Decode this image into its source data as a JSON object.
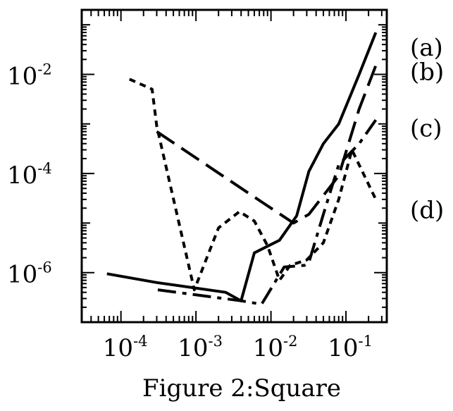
{
  "caption": "Figure 2:Square",
  "chart_data": {
    "type": "line",
    "xscale": "log",
    "yscale": "log",
    "xlim": [
      3e-05,
      0.35
    ],
    "ylim": [
      1e-07,
      0.2
    ],
    "xticks": [
      {
        "value": 0.0001,
        "base": "10",
        "exp": "-4"
      },
      {
        "value": 0.001,
        "base": "10",
        "exp": "-3"
      },
      {
        "value": 0.01,
        "base": "10",
        "exp": "-2"
      },
      {
        "value": 0.1,
        "base": "10",
        "exp": "-1"
      }
    ],
    "yticks": [
      {
        "value": 1e-06,
        "base": "10",
        "exp": "-6"
      },
      {
        "value": 0.0001,
        "base": "10",
        "exp": "-4"
      },
      {
        "value": 0.01,
        "base": "10",
        "exp": "-2"
      }
    ],
    "series": [
      {
        "name": "(a)",
        "style": "solid",
        "x": [
          6.5e-05,
          0.0003,
          0.0025,
          0.004,
          0.006,
          0.013,
          0.022,
          0.032,
          0.05,
          0.08,
          0.15,
          0.25
        ],
        "y": [
          9.5e-07,
          6.3e-07,
          4e-07,
          2.7e-07,
          2.5e-06,
          4.5e-06,
          1.4e-05,
          0.00011,
          0.0004,
          0.001,
          0.01,
          0.07
        ]
      },
      {
        "name": "(b)",
        "style": "dashed",
        "x": [
          0.0003,
          0.008,
          0.02,
          0.032,
          0.08,
          0.15,
          0.25
        ],
        "y": [
          0.0007,
          2.5e-05,
          1e-05,
          1.5e-05,
          9e-05,
          0.002,
          0.015
        ]
      },
      {
        "name": "(c)",
        "style": "dashdot",
        "x": [
          0.00031,
          0.004,
          0.0075,
          0.015,
          0.028,
          0.032,
          0.05,
          0.08,
          0.15,
          0.25
        ],
        "y": [
          4.5e-07,
          2.7e-07,
          2.3e-07,
          1.3e-06,
          1.4e-06,
          1.6e-06,
          1.5e-05,
          0.00015,
          0.0004,
          0.0012
        ]
      },
      {
        "name": "(d)",
        "style": "dotted",
        "x": [
          0.00013,
          0.00026,
          0.0003,
          0.00095,
          0.002,
          0.0038,
          0.006,
          0.009,
          0.013,
          0.018,
          0.03,
          0.05,
          0.08,
          0.12,
          0.25
        ],
        "y": [
          0.008,
          0.005,
          0.0009,
          4.5e-07,
          8e-06,
          1.7e-05,
          1.1e-05,
          3.5e-06,
          7e-07,
          1.4e-06,
          1.8e-06,
          4e-06,
          3e-05,
          0.0003,
          3e-05
        ]
      }
    ]
  }
}
